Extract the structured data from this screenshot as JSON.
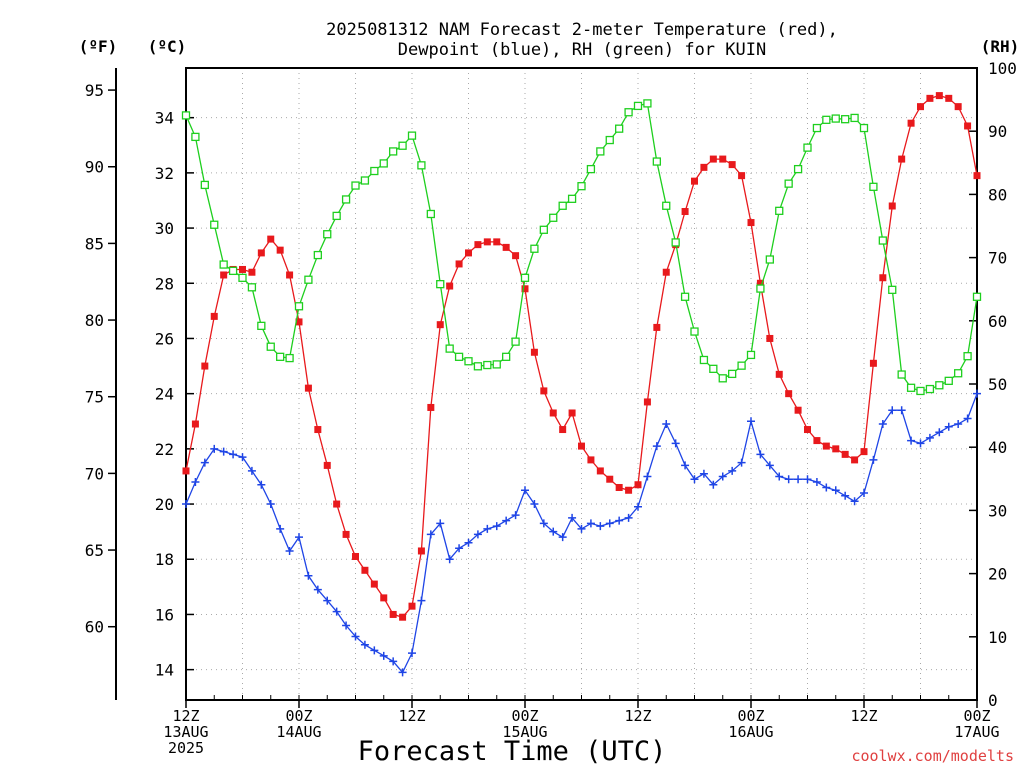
{
  "chart_data": {
    "type": "line",
    "title_lines": [
      "2025081312 NAM Forecast 2-meter Temperature (red),",
      "Dewpoint (blue), RH (green) for KUIN"
    ],
    "xlabel": "Forecast Time (UTC)",
    "credit": "coolwx.com/modelts",
    "x_range_hours": [
      0,
      84
    ],
    "x_ticks": [
      {
        "hour": 0,
        "lines": [
          "12Z",
          "13AUG",
          "2025"
        ]
      },
      {
        "hour": 12,
        "lines": [
          "00Z",
          "14AUG"
        ]
      },
      {
        "hour": 24,
        "lines": [
          "12Z"
        ]
      },
      {
        "hour": 36,
        "lines": [
          "00Z",
          "15AUG"
        ]
      },
      {
        "hour": 48,
        "lines": [
          "12Z"
        ]
      },
      {
        "hour": 60,
        "lines": [
          "00Z",
          "16AUG"
        ]
      },
      {
        "hour": 72,
        "lines": [
          "12Z"
        ]
      },
      {
        "hour": 84,
        "lines": [
          "00Z",
          "17AUG"
        ]
      }
    ],
    "left_axis_c": {
      "unit": "(ºC)",
      "range": [
        12.9,
        35.8
      ],
      "ticks": [
        14,
        16,
        18,
        20,
        22,
        24,
        26,
        28,
        30,
        32,
        34
      ]
    },
    "left_axis_f": {
      "unit": "(ºF)",
      "ticks": [
        60,
        65,
        70,
        75,
        80,
        85,
        90,
        95
      ]
    },
    "right_axis_rh": {
      "unit": "(RH)",
      "range": [
        0,
        100
      ],
      "ticks": [
        0,
        10,
        20,
        30,
        40,
        50,
        60,
        70,
        80,
        90,
        100
      ]
    },
    "grid": true,
    "colors": {
      "temperature": "#e8191c",
      "dewpoint": "#1f45e6",
      "rh": "#1ecf1e",
      "grid": "#aaaaaa"
    },
    "series": [
      {
        "key": "temperature",
        "axis": "celsius",
        "marker": "filled-square",
        "values": [
          21.2,
          22.9,
          25.0,
          26.8,
          28.3,
          28.5,
          28.5,
          28.4,
          29.1,
          29.6,
          29.2,
          28.3,
          26.6,
          24.2,
          22.7,
          21.4,
          20.0,
          18.9,
          18.1,
          17.6,
          17.1,
          16.6,
          16.0,
          15.9,
          16.3,
          18.3,
          23.5,
          26.5,
          27.9,
          28.7,
          29.1,
          29.4,
          29.5,
          29.5,
          29.3,
          29.0,
          27.8,
          25.5,
          24.1,
          23.3,
          22.7,
          23.3,
          22.1,
          21.6,
          21.2,
          20.9,
          20.6,
          20.5,
          20.7,
          23.7,
          26.4,
          28.4,
          29.4,
          30.6,
          31.7,
          32.2,
          32.5,
          32.5,
          32.3,
          31.9,
          30.2,
          28.0,
          26.0,
          24.7,
          24.0,
          23.4,
          22.7,
          22.3,
          22.1,
          22.0,
          21.8,
          21.6,
          21.9,
          25.1,
          28.2,
          30.8,
          32.5,
          33.8,
          34.4,
          34.7,
          34.8,
          34.7,
          34.4,
          33.7,
          31.9
        ]
      },
      {
        "key": "dewpoint",
        "axis": "celsius",
        "marker": "plus",
        "values": [
          20.0,
          20.8,
          21.5,
          22.0,
          21.9,
          21.8,
          21.7,
          21.2,
          20.7,
          20.0,
          19.1,
          18.3,
          18.8,
          17.4,
          16.9,
          16.5,
          16.1,
          15.6,
          15.2,
          14.9,
          14.7,
          14.5,
          14.3,
          13.9,
          14.6,
          16.5,
          18.9,
          19.3,
          18.0,
          18.4,
          18.6,
          18.9,
          19.1,
          19.2,
          19.4,
          19.6,
          20.5,
          20.0,
          19.3,
          19.0,
          18.8,
          19.5,
          19.1,
          19.3,
          19.2,
          19.3,
          19.4,
          19.5,
          19.9,
          21.0,
          22.1,
          22.9,
          22.2,
          21.4,
          20.9,
          21.1,
          20.7,
          21.0,
          21.2,
          21.5,
          23.0,
          21.8,
          21.4,
          21.0,
          20.9,
          20.9,
          20.9,
          20.8,
          20.6,
          20.5,
          20.3,
          20.1,
          20.4,
          21.6,
          22.9,
          23.4,
          23.4,
          22.3,
          22.2,
          22.4,
          22.6,
          22.8,
          22.9,
          23.1,
          24.0
        ]
      },
      {
        "key": "rh",
        "axis": "rh",
        "marker": "open-square",
        "values": [
          92.5,
          89.1,
          81.5,
          75.2,
          68.9,
          67.9,
          66.8,
          65.3,
          59.2,
          55.9,
          54.3,
          54.1,
          62.3,
          66.5,
          70.4,
          73.7,
          76.6,
          79.2,
          81.4,
          82.2,
          83.7,
          84.9,
          86.8,
          87.7,
          89.3,
          84.6,
          76.9,
          65.8,
          55.6,
          54.3,
          53.6,
          52.8,
          53.0,
          53.1,
          54.3,
          56.7,
          66.8,
          71.4,
          74.4,
          76.3,
          78.2,
          79.3,
          81.3,
          84.0,
          86.8,
          88.6,
          90.4,
          93.0,
          94.0,
          94.4,
          85.2,
          78.2,
          72.4,
          63.8,
          58.3,
          53.8,
          52.4,
          50.9,
          51.6,
          52.9,
          54.6,
          65.1,
          69.7,
          77.4,
          81.7,
          84.0,
          87.4,
          90.5,
          91.8,
          92.0,
          91.9,
          92.1,
          90.5,
          81.2,
          72.7,
          64.9,
          51.5,
          49.4,
          48.9,
          49.2,
          49.8,
          50.5,
          51.7,
          54.4,
          63.8
        ]
      }
    ]
  }
}
